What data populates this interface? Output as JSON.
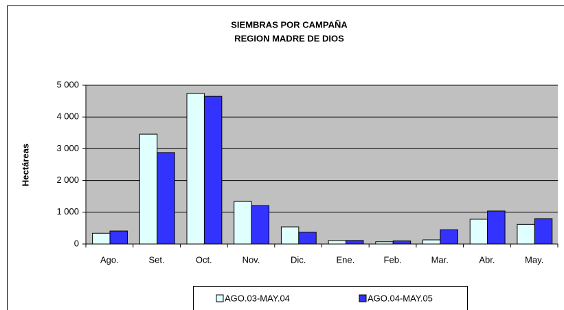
{
  "chart_data": {
    "type": "bar",
    "title": [
      "SIEMBRAS POR CAMPAÑA",
      "REGION MADRE DE DIOS"
    ],
    "y_label": "Hectáreas",
    "categories": [
      "Ago.",
      "Set.",
      "Oct.",
      "Nov.",
      "Dic.",
      "Ene.",
      "Feb.",
      "Mar.",
      "Abr.",
      "May."
    ],
    "series": [
      {
        "name": "AGO.03-MAY.04",
        "color": "#e0ffff",
        "values": [
          340,
          3460,
          4740,
          1340,
          540,
          110,
          70,
          130,
          780,
          620
        ]
      },
      {
        "name": "AGO.04-MAY.05",
        "color": "#3333ff",
        "values": [
          410,
          2880,
          4650,
          1210,
          370,
          110,
          100,
          450,
          1040,
          800
        ]
      }
    ],
    "ylim": [
      0,
      5000
    ],
    "yticks": [
      0,
      {
        "value": 1000,
        "label": "1 000"
      },
      {
        "value": 2000,
        "label": "2 000"
      },
      {
        "value": 3000,
        "label": "3 000"
      },
      {
        "value": 4000,
        "label": "4 000"
      },
      {
        "value": 5000,
        "label": "5 000"
      }
    ],
    "grid": true,
    "plot_background": "#c0c0c0",
    "legend": "bottom"
  }
}
